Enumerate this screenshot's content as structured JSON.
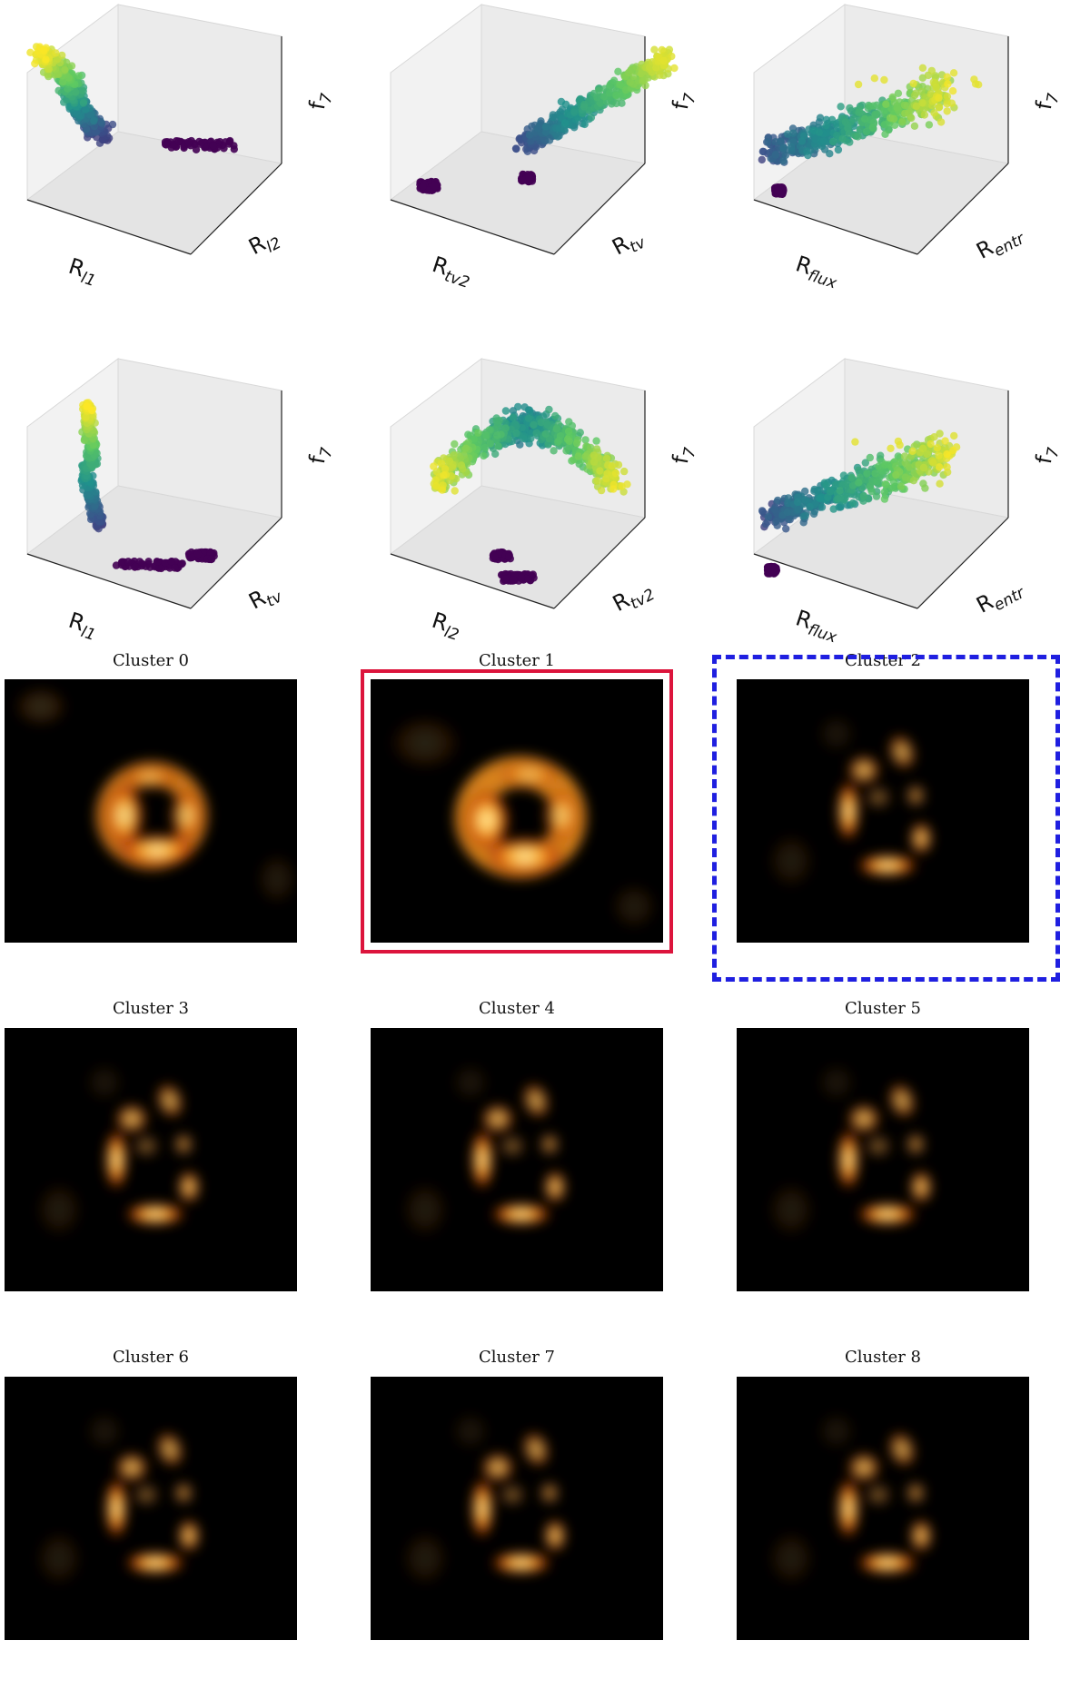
{
  "colors": {
    "viridis": [
      "#440154",
      "#3b528b",
      "#21918c",
      "#5ec962",
      "#fde725"
    ],
    "highlight_solid": "#dc143c",
    "highlight_dashed": "#1f1fe0",
    "image_background": "#000000"
  },
  "scatter_plots": [
    {
      "xlabel_base": "R",
      "xlabel_sub": "l1",
      "ylabel_base": "R",
      "ylabel_sub": "l2",
      "zlabel": "f",
      "zlabel_sub": "7"
    },
    {
      "xlabel_base": "R",
      "xlabel_sub": "tv2",
      "ylabel_base": "R",
      "ylabel_sub": "tv",
      "zlabel": "f",
      "zlabel_sub": "7"
    },
    {
      "xlabel_base": "R",
      "xlabel_sub": "flux",
      "ylabel_base": "R",
      "ylabel_sub": "entr",
      "zlabel": "f",
      "zlabel_sub": "7"
    },
    {
      "xlabel_base": "R",
      "xlabel_sub": "l1",
      "ylabel_base": "R",
      "ylabel_sub": "tv",
      "zlabel": "f",
      "zlabel_sub": "7"
    },
    {
      "xlabel_base": "R",
      "xlabel_sub": "l2",
      "ylabel_base": "R",
      "ylabel_sub": "tv2",
      "zlabel": "f",
      "zlabel_sub": "7"
    },
    {
      "xlabel_base": "R",
      "xlabel_sub": "flux",
      "ylabel_base": "R",
      "ylabel_sub": "entr",
      "zlabel": "f",
      "zlabel_sub": "7"
    }
  ],
  "clusters": [
    {
      "title": "Cluster 0",
      "style": "smooth"
    },
    {
      "title": "Cluster 1",
      "style": "donut",
      "highlight": "solid"
    },
    {
      "title": "Cluster 2",
      "style": "clumpy",
      "highlight": "dashed"
    },
    {
      "title": "Cluster 3",
      "style": "clumpy"
    },
    {
      "title": "Cluster 4",
      "style": "clumpy"
    },
    {
      "title": "Cluster 5",
      "style": "clumpy"
    },
    {
      "title": "Cluster 6",
      "style": "clumpy"
    },
    {
      "title": "Cluster 7",
      "style": "clumpy"
    },
    {
      "title": "Cluster 8",
      "style": "clumpy"
    }
  ],
  "chart_data": [
    {
      "type": "scatter",
      "projection": "3d",
      "xlabel": "R_l1",
      "ylabel": "R_l2",
      "zlabel": "f_7",
      "colormap": "viridis",
      "grid": false,
      "legend": "none"
    },
    {
      "type": "scatter",
      "projection": "3d",
      "xlabel": "R_tv2",
      "ylabel": "R_tv",
      "zlabel": "f_7",
      "colormap": "viridis",
      "grid": false,
      "legend": "none"
    },
    {
      "type": "scatter",
      "projection": "3d",
      "xlabel": "R_flux",
      "ylabel": "R_entr",
      "zlabel": "f_7",
      "colormap": "viridis",
      "grid": false,
      "legend": "none"
    },
    {
      "type": "scatter",
      "projection": "3d",
      "xlabel": "R_l1",
      "ylabel": "R_tv",
      "zlabel": "f_7",
      "colormap": "viridis",
      "grid": false,
      "legend": "none"
    },
    {
      "type": "scatter",
      "projection": "3d",
      "xlabel": "R_l2",
      "ylabel": "R_tv2",
      "zlabel": "f_7",
      "colormap": "viridis",
      "grid": false,
      "legend": "none"
    },
    {
      "type": "scatter",
      "projection": "3d",
      "xlabel": "R_flux",
      "ylabel": "R_entr",
      "zlabel": "f_7",
      "colormap": "viridis",
      "grid": false,
      "legend": "none"
    },
    {
      "type": "heatmap",
      "title": "Cluster 0",
      "colormap": "afmhot"
    },
    {
      "type": "heatmap",
      "title": "Cluster 1",
      "colormap": "afmhot"
    },
    {
      "type": "heatmap",
      "title": "Cluster 2",
      "colormap": "afmhot"
    },
    {
      "type": "heatmap",
      "title": "Cluster 3",
      "colormap": "afmhot"
    },
    {
      "type": "heatmap",
      "title": "Cluster 4",
      "colormap": "afmhot"
    },
    {
      "type": "heatmap",
      "title": "Cluster 5",
      "colormap": "afmhot"
    },
    {
      "type": "heatmap",
      "title": "Cluster 6",
      "colormap": "afmhot"
    },
    {
      "type": "heatmap",
      "title": "Cluster 7",
      "colormap": "afmhot"
    },
    {
      "type": "heatmap",
      "title": "Cluster 8",
      "colormap": "afmhot"
    }
  ]
}
